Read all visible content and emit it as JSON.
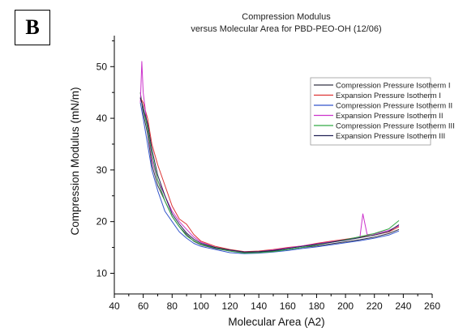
{
  "panel_label": "B",
  "chart_data": {
    "type": "line",
    "title": "Compression Modulus",
    "subtitle": "versus Molecular Area for PBD-PEO-OH (12/06)",
    "xlabel": "Molecular Area (A2)",
    "ylabel": "Compression Modulus (mN/m)",
    "xlim": [
      40,
      260
    ],
    "ylim": [
      6,
      56
    ],
    "xticks": [
      40,
      60,
      80,
      100,
      120,
      140,
      160,
      180,
      200,
      220,
      240,
      260
    ],
    "yticks": [
      10,
      20,
      30,
      40,
      50
    ],
    "grid": false,
    "legend_position": "top-right",
    "series": [
      {
        "name": "Compression Pressure Isotherm I",
        "color": "#333344",
        "x": [
          58,
          60,
          63,
          66,
          70,
          75,
          80,
          85,
          90,
          95,
          100,
          110,
          120,
          130,
          140,
          150,
          160,
          170,
          180,
          190,
          200,
          210,
          220,
          230,
          237
        ],
        "y": [
          45,
          41,
          37,
          31,
          27,
          24,
          21,
          19,
          17.5,
          16.2,
          15.5,
          14.8,
          14.3,
          14.0,
          14.1,
          14.3,
          14.6,
          15.0,
          15.3,
          15.7,
          16.1,
          16.5,
          17.0,
          17.7,
          18.5
        ]
      },
      {
        "name": "Expansion Pressure Isotherm I",
        "color": "#dd3333",
        "x": [
          58,
          60,
          63,
          66,
          70,
          75,
          80,
          85,
          90,
          95,
          100,
          110,
          120,
          130,
          140,
          150,
          160,
          170,
          180,
          190,
          200,
          210,
          220,
          230,
          237
        ],
        "y": [
          44,
          43,
          40,
          35,
          31,
          27,
          23,
          20.5,
          19.5,
          17.5,
          16.2,
          15.2,
          14.6,
          14.2,
          14.3,
          14.6,
          15.0,
          15.3,
          15.8,
          16.2,
          16.6,
          17.0,
          17.4,
          18.0,
          19.0
        ]
      },
      {
        "name": "Compression Pressure Isotherm II",
        "color": "#3355cc",
        "x": [
          58,
          60,
          63,
          66,
          70,
          75,
          80,
          85,
          90,
          95,
          100,
          110,
          120,
          130,
          140,
          150,
          160,
          170,
          180,
          190,
          200,
          210,
          220,
          230,
          237
        ],
        "y": [
          43,
          40,
          35,
          30,
          26,
          22,
          20,
          18,
          16.8,
          15.8,
          15.2,
          14.6,
          14.0,
          13.8,
          13.9,
          14.1,
          14.4,
          14.8,
          15.1,
          15.5,
          15.9,
          16.3,
          16.8,
          17.4,
          18.2
        ]
      },
      {
        "name": "Expansion Pressure Isotherm II",
        "color": "#cc33cc",
        "x": [
          58,
          59,
          60,
          63,
          66,
          70,
          75,
          80,
          85,
          90,
          95,
          100,
          110,
          120,
          130,
          140,
          150,
          160,
          170,
          180,
          190,
          200,
          210,
          212,
          215,
          220,
          230,
          237
        ],
        "y": [
          43,
          51,
          45,
          38,
          32,
          28,
          25,
          22,
          20,
          18.5,
          17,
          16,
          15,
          14.4,
          14.1,
          14.2,
          14.5,
          14.9,
          15.3,
          15.7,
          16.1,
          16.5,
          17.0,
          21.5,
          17.5,
          17.6,
          18.3,
          19.2
        ]
      },
      {
        "name": "Compression Pressure Isotherm III",
        "color": "#33aa44",
        "x": [
          58,
          60,
          63,
          66,
          70,
          75,
          80,
          85,
          90,
          95,
          100,
          110,
          120,
          130,
          140,
          150,
          160,
          170,
          180,
          190,
          200,
          210,
          220,
          230,
          237
        ],
        "y": [
          44,
          42,
          38,
          33,
          28,
          24,
          21,
          19,
          17.2,
          16.3,
          15.6,
          14.9,
          14.3,
          13.9,
          14.0,
          14.2,
          14.6,
          15.0,
          15.5,
          16.0,
          16.5,
          17.1,
          17.7,
          18.6,
          20.2
        ]
      },
      {
        "name": "Expansion Pressure Isotherm III",
        "color": "#222255",
        "x": [
          58,
          60,
          63,
          66,
          70,
          75,
          80,
          85,
          90,
          95,
          100,
          110,
          120,
          130,
          140,
          150,
          160,
          170,
          180,
          190,
          200,
          210,
          220,
          230,
          237
        ],
        "y": [
          44,
          42,
          39,
          34,
          29,
          25,
          21.5,
          19.5,
          17.8,
          16.6,
          15.8,
          15.0,
          14.5,
          14.1,
          14.2,
          14.4,
          14.8,
          15.2,
          15.6,
          16.0,
          16.4,
          16.9,
          17.4,
          18.1,
          19.4
        ]
      }
    ]
  }
}
